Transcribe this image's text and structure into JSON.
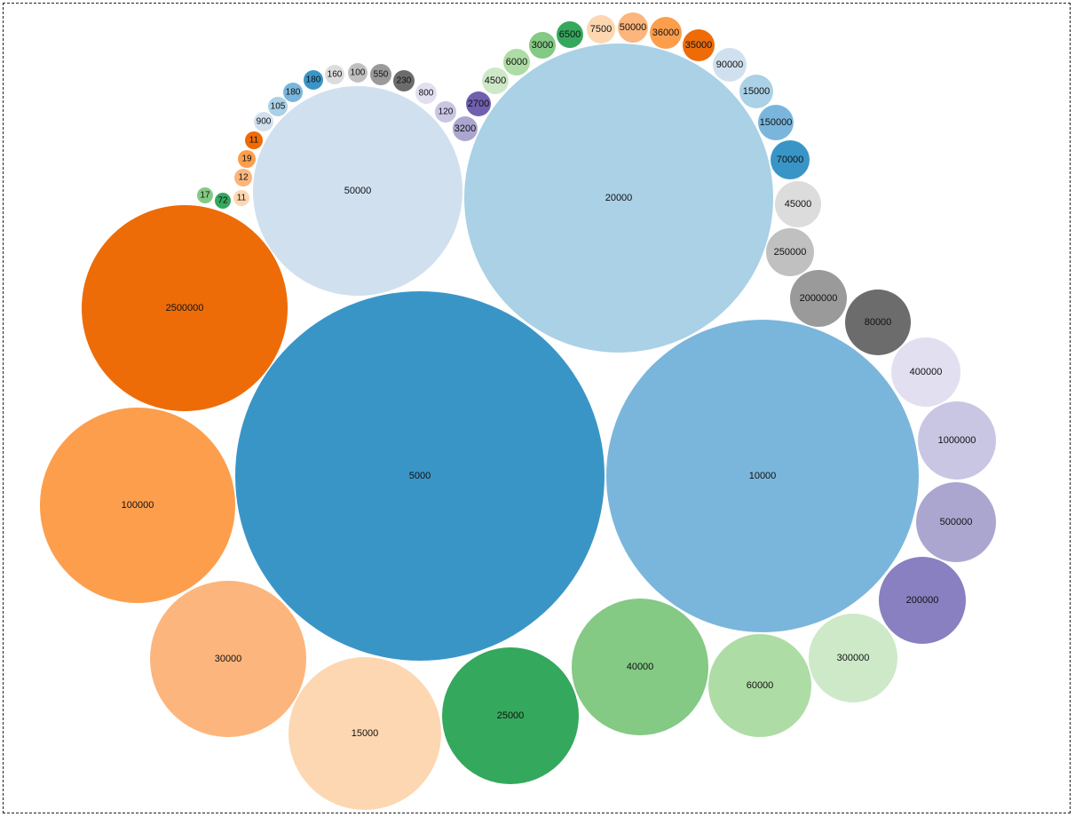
{
  "chart_data": {
    "type": "bubble",
    "title": "",
    "palette": [
      "#3a95c7",
      "#7ab6db",
      "#aad1e6",
      "#d0e0ef",
      "#ed6c08",
      "#fd9e4c",
      "#fcb57c",
      "#fcd7b1",
      "#34a85c",
      "#84c984",
      "#aedca5",
      "#cde9c8",
      "#7160b0",
      "#8880c0",
      "#aba6d0",
      "#c8c6e3",
      "#e2dff0",
      "#6c6c6c",
      "#9a9a9a",
      "#c0c0c0",
      "#dcdcdc"
    ],
    "bubbles": [
      {
        "value": 5000,
        "label": "5000",
        "color": "#3a95c7"
      },
      {
        "value": 10000,
        "label": "10000",
        "color": "#7ab6db"
      },
      {
        "value": 20000,
        "label": "20000",
        "color": "#aad1e6"
      },
      {
        "value": 50000,
        "label": "50000",
        "color": "#d0e0ef"
      },
      {
        "value": 2500000,
        "label": "2500000",
        "color": "#ed6c08"
      },
      {
        "value": 100000,
        "label": "100000",
        "color": "#fd9e4c"
      },
      {
        "value": 30000,
        "label": "30000",
        "color": "#fcb57c"
      },
      {
        "value": 15000,
        "label": "15000",
        "color": "#fcd7b1"
      },
      {
        "value": 25000,
        "label": "25000",
        "color": "#34a85c"
      },
      {
        "value": 40000,
        "label": "40000",
        "color": "#84c984"
      },
      {
        "value": 60000,
        "label": "60000",
        "color": "#aedca5"
      },
      {
        "value": 300000,
        "label": "300000",
        "color": "#cde9c8"
      },
      {
        "value": 200000,
        "label": "200000",
        "color": "#8880c0"
      },
      {
        "value": 500000,
        "label": "500000",
        "color": "#aba6d0"
      },
      {
        "value": 1000000,
        "label": "1000000",
        "color": "#c8c6e3"
      },
      {
        "value": 400000,
        "label": "400000",
        "color": "#e2dff0"
      },
      {
        "value": 80000,
        "label": "80000",
        "color": "#6c6c6c"
      },
      {
        "value": 2000000,
        "label": "2000000",
        "color": "#9a9a9a"
      },
      {
        "value": 250000,
        "label": "250000",
        "color": "#c0c0c0"
      },
      {
        "value": 45000,
        "label": "45000",
        "color": "#dcdcdc"
      },
      {
        "value": 70000,
        "label": "70000",
        "color": "#3a95c7"
      },
      {
        "value": 150000,
        "label": "150000",
        "color": "#7ab6db"
      },
      {
        "value": 15000,
        "label": "15000",
        "color": "#aad1e6"
      },
      {
        "value": 90000,
        "label": "90000",
        "color": "#d0e0ef"
      },
      {
        "value": 35000,
        "label": "35000",
        "color": "#ed6c08"
      },
      {
        "value": 36000,
        "label": "36000",
        "color": "#fd9e4c"
      },
      {
        "value": 50000,
        "label": "50000",
        "color": "#fcb57c"
      },
      {
        "value": 7500,
        "label": "7500",
        "color": "#fcd7b1"
      },
      {
        "value": 6500,
        "label": "6500",
        "color": "#34a85c"
      },
      {
        "value": 3000,
        "label": "3000",
        "color": "#84c984"
      },
      {
        "value": 6000,
        "label": "6000",
        "color": "#aedca5"
      },
      {
        "value": 4500,
        "label": "4500",
        "color": "#cde9c8"
      },
      {
        "value": 2700,
        "label": "2700",
        "color": "#7160b0"
      },
      {
        "value": 3200,
        "label": "3200",
        "color": "#aba6d0"
      },
      {
        "value": 120,
        "label": "120",
        "color": "#c8c6e3"
      },
      {
        "value": 800,
        "label": "800",
        "color": "#e2dff0"
      },
      {
        "value": 230,
        "label": "230",
        "color": "#6c6c6c"
      },
      {
        "value": 550,
        "label": "550",
        "color": "#9a9a9a"
      },
      {
        "value": 100,
        "label": "100",
        "color": "#c0c0c0"
      },
      {
        "value": 160,
        "label": "160",
        "color": "#dcdcdc"
      },
      {
        "value": 180,
        "label": "180",
        "color": "#3a95c7"
      },
      {
        "value": 180,
        "label": "180",
        "color": "#7ab6db"
      },
      {
        "value": 105,
        "label": "105",
        "color": "#aad1e6"
      },
      {
        "value": 900,
        "label": "900",
        "color": "#d0e0ef"
      },
      {
        "value": 11,
        "label": "11",
        "color": "#ed6c08"
      },
      {
        "value": 19,
        "label": "19",
        "color": "#fd9e4c"
      },
      {
        "value": 12,
        "label": "12",
        "color": "#fcb57c"
      },
      {
        "value": 11,
        "label": "11",
        "color": "#fcd7b1"
      },
      {
        "value": 72,
        "label": "72",
        "color": "#34a85c"
      },
      {
        "value": 17,
        "label": "17",
        "color": "#84c984"
      }
    ]
  }
}
